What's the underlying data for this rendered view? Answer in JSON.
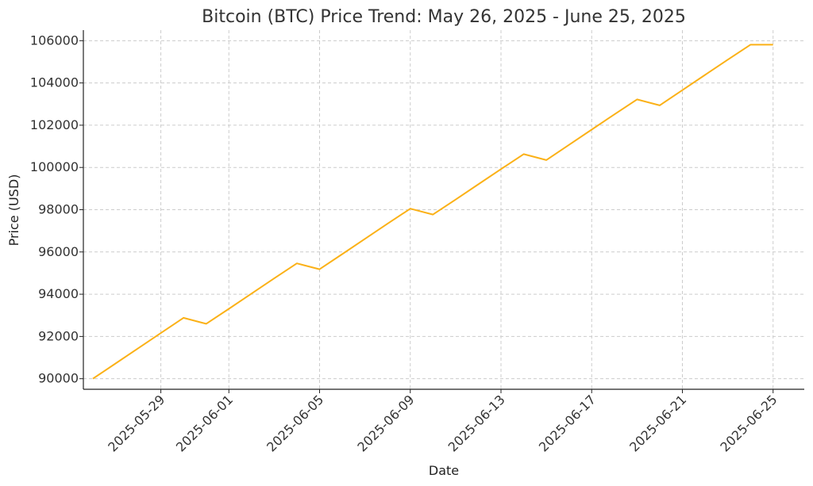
{
  "chart_data": {
    "type": "line",
    "title": "Bitcoin (BTC) Price Trend: May 26, 2025 - June 25, 2025",
    "xlabel": "Date",
    "ylabel": "Price (USD)",
    "grid": true,
    "ylim": [
      89500,
      106500
    ],
    "xlim": [
      "2025-05-25T14:00",
      "2025-06-26T09:00"
    ],
    "y_ticks": [
      90000,
      92000,
      94000,
      96000,
      98000,
      100000,
      102000,
      104000,
      106000
    ],
    "x_ticks": [
      "2025-05-29",
      "2025-06-01",
      "2025-06-05",
      "2025-06-09",
      "2025-06-13",
      "2025-06-17",
      "2025-06-21",
      "2025-06-25"
    ],
    "line_color": "#fbb117",
    "series": [
      {
        "x": [
          "2025-05-26",
          "2025-05-27",
          "2025-05-28",
          "2025-05-29",
          "2025-05-30",
          "2025-05-31",
          "2025-06-01",
          "2025-06-02",
          "2025-06-03",
          "2025-06-04",
          "2025-06-05",
          "2025-06-06",
          "2025-06-07",
          "2025-06-08",
          "2025-06-09",
          "2025-06-10",
          "2025-06-11",
          "2025-06-12",
          "2025-06-13",
          "2025-06-14",
          "2025-06-15",
          "2025-06-16",
          "2025-06-17",
          "2025-06-18",
          "2025-06-19",
          "2025-06-20",
          "2025-06-21",
          "2025-06-22",
          "2025-06-23",
          "2025-06-24",
          "2025-06-25"
        ],
        "values": [
          90000,
          90720,
          91440,
          92160,
          92880,
          92600,
          93310,
          94030,
          94750,
          95460,
          95180,
          95900,
          96620,
          97340,
          98050,
          97770,
          98480,
          99200,
          99920,
          100630,
          100350,
          101070,
          101790,
          102510,
          103220,
          102940,
          103660,
          104380,
          105100,
          105810,
          105810
        ]
      }
    ]
  }
}
